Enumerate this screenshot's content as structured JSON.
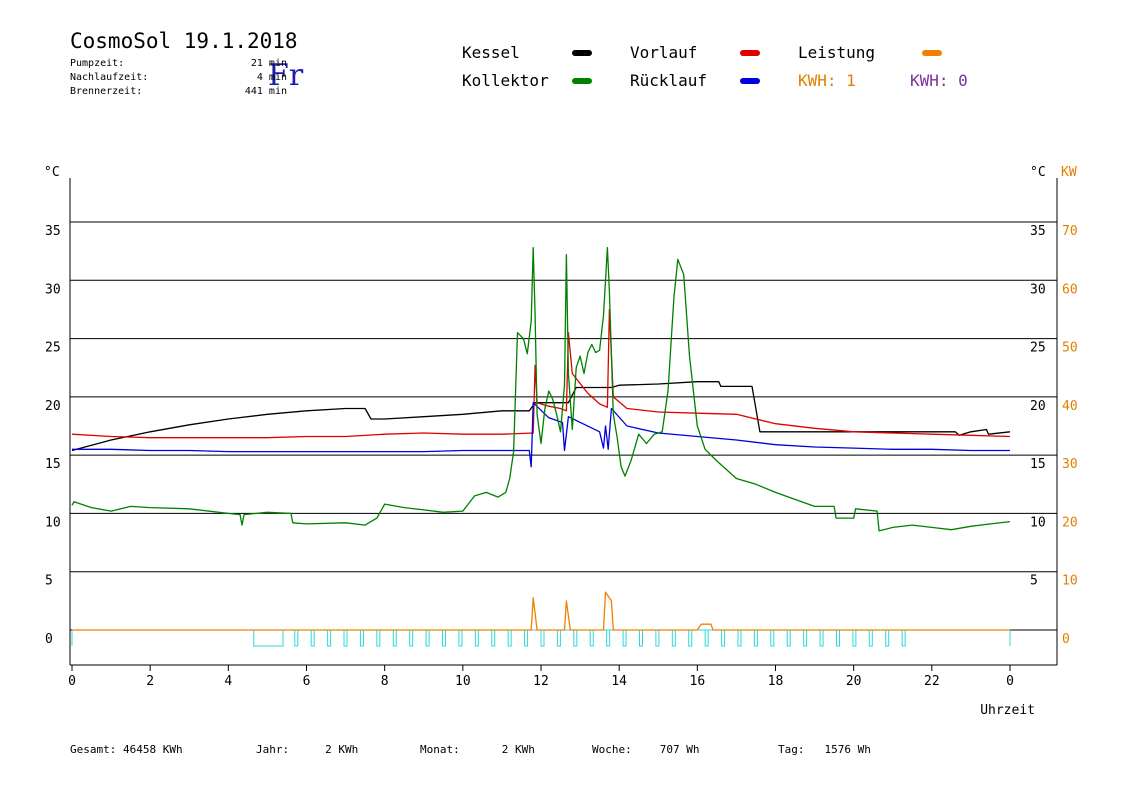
{
  "header": {
    "title": "CosmoSol 19.1.2018",
    "weekday": "Fr",
    "stats": [
      {
        "label": "Pumpzeit:",
        "value": "21 min"
      },
      {
        "label": "Nachlaufzeit:",
        "value": "4 min"
      },
      {
        "label": "Brennerzeit:",
        "value": "441 min"
      }
    ]
  },
  "legend": {
    "items": [
      {
        "name": "Kessel",
        "color": "#000000"
      },
      {
        "name": "Vorlauf",
        "color": "#e00000"
      },
      {
        "name": "Leistung",
        "color": "#f08000"
      },
      {
        "name": "Kollektor",
        "color": "#008000"
      },
      {
        "name": "Rücklauf",
        "color": "#0000e0"
      }
    ],
    "kwh1": "KWH: 1",
    "kwh2": "KWH: 0",
    "kwh1_color": "#e08000",
    "kwh2_color": "#8030a0"
  },
  "footer": {
    "items": [
      {
        "label": "Gesamt:",
        "value": "46458 KWh"
      },
      {
        "label": "Jahr:",
        "value": "2 KWh"
      },
      {
        "label": "Monat:",
        "value": "2 KWh"
      },
      {
        "label": "Woche:",
        "value": "707 Wh"
      },
      {
        "label": "Tag:",
        "value": "1576 Wh"
      }
    ]
  },
  "chart_data": {
    "type": "line",
    "xlabel": "Uhrzeit",
    "y_unit_left": "°C",
    "y_unit_right": "°C",
    "y2_unit": "KW",
    "xlim": [
      0,
      24
    ],
    "ylim": [
      0,
      35
    ],
    "y2lim": [
      0,
      70
    ],
    "grid": true,
    "x_ticks": [
      "0",
      "2",
      "4",
      "6",
      "8",
      "10",
      "12",
      "14",
      "16",
      "18",
      "20",
      "22",
      "0"
    ],
    "y_ticks": [
      "0",
      "5",
      "10",
      "15",
      "20",
      "25",
      "30",
      "35"
    ],
    "y_ticks_right": [
      "5",
      "10",
      "15",
      "20",
      "25",
      "30",
      "35"
    ],
    "y2_ticks": [
      "0",
      "10",
      "20",
      "30",
      "40",
      "50",
      "60",
      "70"
    ],
    "series": [
      {
        "name": "Kessel",
        "color": "#000000",
        "points": [
          [
            0,
            15.4
          ],
          [
            1,
            16.3
          ],
          [
            2,
            17.0
          ],
          [
            3,
            17.6
          ],
          [
            4,
            18.1
          ],
          [
            5,
            18.5
          ],
          [
            6,
            18.8
          ],
          [
            7,
            19.0
          ],
          [
            7.5,
            19.0
          ],
          [
            7.65,
            18.1
          ],
          [
            8,
            18.1
          ],
          [
            9,
            18.3
          ],
          [
            10,
            18.5
          ],
          [
            11,
            18.8
          ],
          [
            11.7,
            18.8
          ],
          [
            11.85,
            19.5
          ],
          [
            12.7,
            19.5
          ],
          [
            12.9,
            20.8
          ],
          [
            13.8,
            20.8
          ],
          [
            14,
            21.0
          ],
          [
            15,
            21.1
          ],
          [
            16,
            21.3
          ],
          [
            16.55,
            21.3
          ],
          [
            16.6,
            20.9
          ],
          [
            17.4,
            20.9
          ],
          [
            17.6,
            17.0
          ],
          [
            18,
            17.0
          ],
          [
            19,
            17.0
          ],
          [
            20,
            17.0
          ],
          [
            21,
            17.0
          ],
          [
            22,
            17.0
          ],
          [
            22.6,
            17.0
          ],
          [
            22.7,
            16.7
          ],
          [
            23,
            17.0
          ],
          [
            23.4,
            17.2
          ],
          [
            23.45,
            16.8
          ],
          [
            24,
            17.0
          ]
        ]
      },
      {
        "name": "Vorlauf",
        "color": "#e00000",
        "points": [
          [
            0,
            16.8
          ],
          [
            1,
            16.6
          ],
          [
            2,
            16.5
          ],
          [
            3,
            16.5
          ],
          [
            4,
            16.5
          ],
          [
            5,
            16.5
          ],
          [
            6,
            16.6
          ],
          [
            7,
            16.6
          ],
          [
            8,
            16.8
          ],
          [
            9,
            16.9
          ],
          [
            10,
            16.8
          ],
          [
            11,
            16.8
          ],
          [
            11.8,
            16.9
          ],
          [
            11.85,
            22.7
          ],
          [
            11.9,
            19.5
          ],
          [
            12.2,
            19.2
          ],
          [
            12.5,
            19.0
          ],
          [
            12.65,
            18.8
          ],
          [
            12.7,
            25.5
          ],
          [
            12.8,
            22.0
          ],
          [
            13.2,
            20.3
          ],
          [
            13.5,
            19.4
          ],
          [
            13.7,
            19.1
          ],
          [
            13.75,
            27.5
          ],
          [
            13.85,
            20.0
          ],
          [
            14.2,
            19.0
          ],
          [
            15,
            18.7
          ],
          [
            16,
            18.6
          ],
          [
            17,
            18.5
          ],
          [
            18,
            17.7
          ],
          [
            19,
            17.3
          ],
          [
            20,
            17.0
          ],
          [
            21,
            16.9
          ],
          [
            22,
            16.8
          ],
          [
            23,
            16.7
          ],
          [
            24,
            16.6
          ]
        ]
      },
      {
        "name": "Rücklauf",
        "color": "#0000e0",
        "points": [
          [
            0,
            15.5
          ],
          [
            1,
            15.5
          ],
          [
            2,
            15.4
          ],
          [
            3,
            15.4
          ],
          [
            4,
            15.3
          ],
          [
            5,
            15.3
          ],
          [
            6,
            15.3
          ],
          [
            7,
            15.3
          ],
          [
            8,
            15.3
          ],
          [
            9,
            15.3
          ],
          [
            10,
            15.4
          ],
          [
            11,
            15.4
          ],
          [
            11.7,
            15.4
          ],
          [
            11.75,
            14.0
          ],
          [
            11.8,
            19.5
          ],
          [
            12.2,
            18.2
          ],
          [
            12.55,
            17.8
          ],
          [
            12.6,
            15.4
          ],
          [
            12.7,
            18.3
          ],
          [
            13.5,
            17.0
          ],
          [
            13.6,
            15.6
          ],
          [
            13.65,
            17.5
          ],
          [
            13.72,
            15.5
          ],
          [
            13.8,
            19.0
          ],
          [
            14.2,
            17.5
          ],
          [
            15,
            16.9
          ],
          [
            16,
            16.6
          ],
          [
            17,
            16.3
          ],
          [
            18,
            15.9
          ],
          [
            19,
            15.7
          ],
          [
            20,
            15.6
          ],
          [
            21,
            15.5
          ],
          [
            22,
            15.5
          ],
          [
            23,
            15.4
          ],
          [
            24,
            15.4
          ]
        ]
      },
      {
        "name": "Kollektor",
        "color": "#008000",
        "points": [
          [
            0,
            10.7
          ],
          [
            0.05,
            11.0
          ],
          [
            0.5,
            10.5
          ],
          [
            1,
            10.2
          ],
          [
            1.5,
            10.6
          ],
          [
            2,
            10.5
          ],
          [
            3,
            10.4
          ],
          [
            4,
            10.0
          ],
          [
            4.3,
            9.9
          ],
          [
            4.35,
            9.0
          ],
          [
            4.4,
            9.9
          ],
          [
            5,
            10.1
          ],
          [
            5.6,
            10.0
          ],
          [
            5.65,
            9.2
          ],
          [
            6,
            9.1
          ],
          [
            7,
            9.2
          ],
          [
            7.5,
            9.0
          ],
          [
            7.8,
            9.6
          ],
          [
            8,
            10.8
          ],
          [
            8.5,
            10.5
          ],
          [
            9,
            10.3
          ],
          [
            9.5,
            10.1
          ],
          [
            10,
            10.2
          ],
          [
            10.3,
            11.5
          ],
          [
            10.6,
            11.8
          ],
          [
            10.9,
            11.4
          ],
          [
            11.1,
            11.8
          ],
          [
            11.2,
            13.0
          ],
          [
            11.3,
            15.3
          ],
          [
            11.4,
            25.5
          ],
          [
            11.55,
            25.0
          ],
          [
            11.65,
            23.7
          ],
          [
            11.75,
            26.5
          ],
          [
            11.8,
            32.8
          ],
          [
            11.85,
            27.0
          ],
          [
            11.9,
            18.5
          ],
          [
            12.0,
            16.0
          ],
          [
            12.1,
            19.0
          ],
          [
            12.2,
            20.5
          ],
          [
            12.3,
            19.8
          ],
          [
            12.4,
            18.5
          ],
          [
            12.5,
            17.0
          ],
          [
            12.6,
            21.0
          ],
          [
            12.65,
            32.2
          ],
          [
            12.7,
            22.0
          ],
          [
            12.8,
            17.2
          ],
          [
            12.9,
            22.5
          ],
          [
            13.0,
            23.5
          ],
          [
            13.1,
            22.0
          ],
          [
            13.2,
            23.8
          ],
          [
            13.3,
            24.5
          ],
          [
            13.4,
            23.8
          ],
          [
            13.5,
            24.0
          ],
          [
            13.6,
            27.0
          ],
          [
            13.7,
            32.8
          ],
          [
            13.75,
            29.0
          ],
          [
            13.85,
            18.5
          ],
          [
            13.95,
            16.5
          ],
          [
            14.05,
            14.0
          ],
          [
            14.15,
            13.2
          ],
          [
            14.3,
            14.5
          ],
          [
            14.5,
            16.8
          ],
          [
            14.7,
            16.0
          ],
          [
            14.9,
            16.8
          ],
          [
            15.1,
            17.0
          ],
          [
            15.25,
            20.5
          ],
          [
            15.4,
            28.5
          ],
          [
            15.5,
            31.8
          ],
          [
            15.65,
            30.5
          ],
          [
            15.8,
            23.5
          ],
          [
            16.0,
            17.5
          ],
          [
            16.2,
            15.5
          ],
          [
            16.5,
            14.5
          ],
          [
            17,
            13.0
          ],
          [
            17.5,
            12.5
          ],
          [
            18,
            11.8
          ],
          [
            18.5,
            11.2
          ],
          [
            19,
            10.6
          ],
          [
            19.5,
            10.6
          ],
          [
            19.55,
            9.6
          ],
          [
            20,
            9.6
          ],
          [
            20.05,
            10.4
          ],
          [
            20.6,
            10.2
          ],
          [
            20.65,
            8.5
          ],
          [
            21,
            8.8
          ],
          [
            21.5,
            9.0
          ],
          [
            22,
            8.8
          ],
          [
            22.5,
            8.6
          ],
          [
            23,
            8.9
          ],
          [
            23.5,
            9.1
          ],
          [
            24,
            9.3
          ]
        ]
      },
      {
        "name": "Leistung",
        "color": "#f08000",
        "axis": "right",
        "points": [
          [
            0,
            0
          ],
          [
            11.75,
            0
          ],
          [
            11.8,
            5.5
          ],
          [
            11.9,
            0
          ],
          [
            12.6,
            0
          ],
          [
            12.65,
            5.0
          ],
          [
            12.75,
            0
          ],
          [
            13.6,
            0
          ],
          [
            13.65,
            6.5
          ],
          [
            13.8,
            5.0
          ],
          [
            13.85,
            0
          ],
          [
            16.0,
            0
          ],
          [
            16.1,
            1.0
          ],
          [
            16.35,
            1.0
          ],
          [
            16.4,
            0
          ],
          [
            24,
            0
          ]
        ]
      }
    ]
  }
}
